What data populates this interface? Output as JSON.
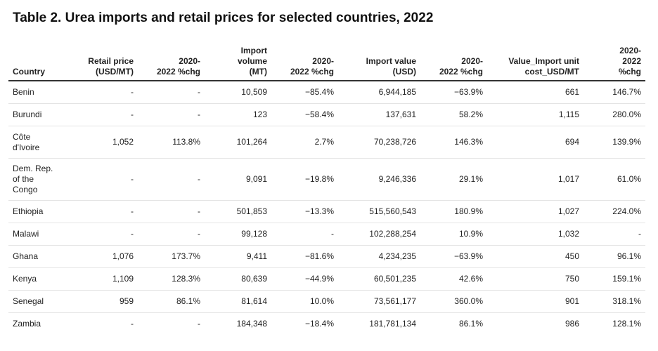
{
  "title": "Table 2. Urea imports and retail prices for selected countries, 2022",
  "columns": [
    "Country",
    "Retail price\n(USD/MT)",
    "2020-\n2022 %chg",
    "Import\nvolume\n(MT)",
    "2020-\n2022 %chg",
    "Import value\n(USD)",
    "2020-\n2022 %chg",
    "Value_Import unit\ncost_USD/MT",
    "2020-\n2022\n%chg"
  ],
  "rows": [
    [
      "Benin",
      "-",
      "-",
      "10,509",
      "−85.4%",
      "6,944,185",
      "−63.9%",
      "661",
      "146.7%"
    ],
    [
      "Burundi",
      "-",
      "-",
      "123",
      "−58.4%",
      "137,631",
      "58.2%",
      "1,115",
      "280.0%"
    ],
    [
      "Côte\nd'Ivoire",
      "1,052",
      "113.8%",
      "101,264",
      "2.7%",
      "70,238,726",
      "146.3%",
      "694",
      "139.9%"
    ],
    [
      "Dem. Rep.\nof the\nCongo",
      "-",
      "-",
      "9,091",
      "−19.8%",
      "9,246,336",
      "29.1%",
      "1,017",
      "61.0%"
    ],
    [
      "Ethiopia",
      "-",
      "-",
      "501,853",
      "−13.3%",
      "515,560,543",
      "180.9%",
      "1,027",
      "224.0%"
    ],
    [
      "Malawi",
      "-",
      "-",
      "99,128",
      "-",
      "102,288,254",
      "10.9%",
      "1,032",
      "-"
    ],
    [
      "Ghana",
      "1,076",
      "173.7%",
      "9,411",
      "−81.6%",
      "4,234,235",
      "−63.9%",
      "450",
      "96.1%"
    ],
    [
      "Kenya",
      "1,109",
      "128.3%",
      "80,639",
      "−44.9%",
      "60,501,235",
      "42.6%",
      "750",
      "159.1%"
    ],
    [
      "Senegal",
      "959",
      "86.1%",
      "81,614",
      "10.0%",
      "73,561,177",
      "360.0%",
      "901",
      "318.1%"
    ],
    [
      "Zambia",
      "-",
      "-",
      "184,348",
      "−18.4%",
      "181,781,134",
      "86.1%",
      "986",
      "128.1%"
    ]
  ]
}
